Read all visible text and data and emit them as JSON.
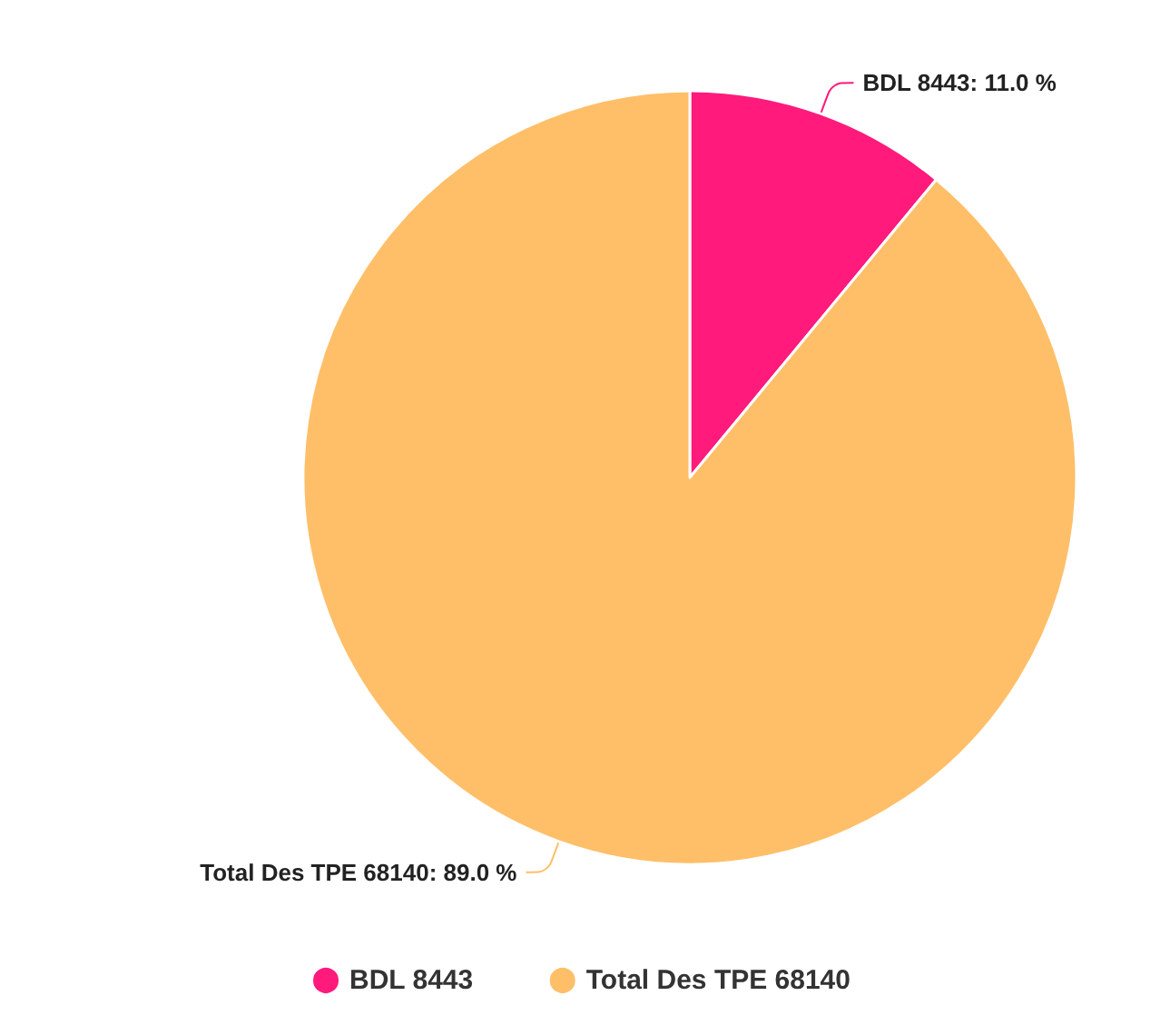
{
  "chart_data": {
    "type": "pie",
    "categories": [
      "BDL 8443",
      "Total Des TPE 68140"
    ],
    "values": [
      11.0,
      89.0
    ],
    "colors": [
      "#ff1a7c",
      "#ffbf69"
    ],
    "value_labels": [
      "BDL 8443: 11.0 %",
      "Total Des TPE 68140: 89.0 %"
    ],
    "legend": "bottom"
  }
}
